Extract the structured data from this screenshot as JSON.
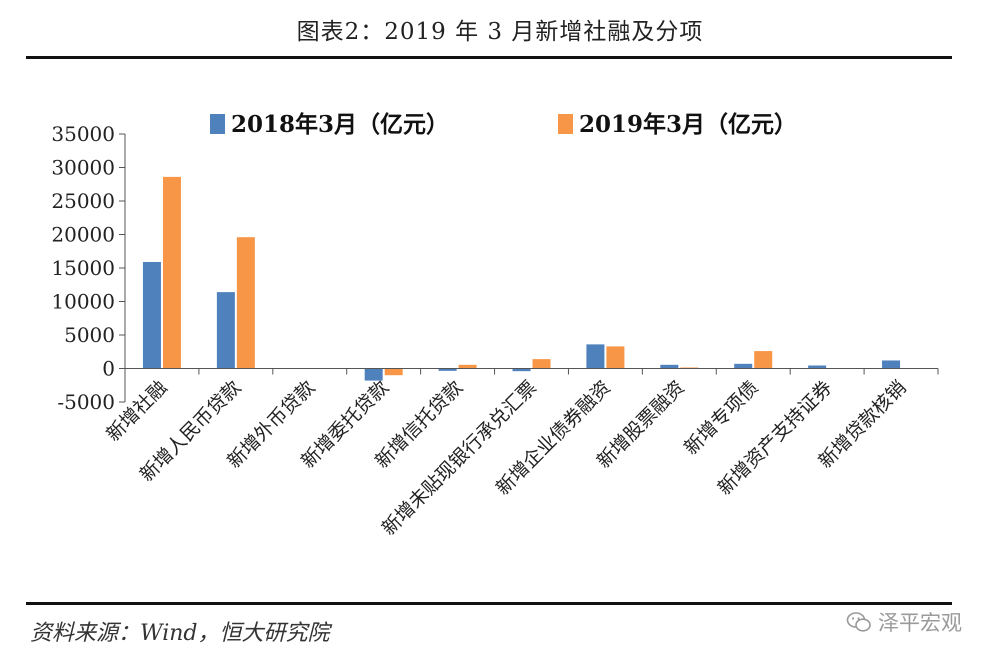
{
  "title": "图表2：2019 年 3 月新增社融及分项",
  "source": "资料来源：Wind，恒大研究院",
  "watermark": {
    "text": "泽平宏观",
    "icon": "wechat-icon"
  },
  "chart_data": {
    "type": "bar",
    "title": "图表2：2019 年 3 月新增社融及分项",
    "categories": [
      "新增社融",
      "新增人民币贷款",
      "新增外币贷款",
      "新增委托贷款",
      "新增信托贷款",
      "新增未贴现银行承兑汇票",
      "新增企业债券融资",
      "新增股票融资",
      "新增专项债",
      "新增资产支持证券",
      "新增贷款核销"
    ],
    "series": [
      {
        "name": "2018年3月（亿元）",
        "color": "#4f81bd",
        "values": [
          15900,
          11400,
          0,
          -1800,
          -350,
          -400,
          3600,
          550,
          700,
          450,
          1200
        ]
      },
      {
        "name": "2019年3月（亿元）",
        "color": "#f79646",
        "values": [
          28600,
          19600,
          0,
          -1000,
          550,
          1400,
          3300,
          150,
          2600,
          0,
          0
        ]
      }
    ],
    "ylim": [
      -5000,
      35000
    ],
    "yticks": [
      35000,
      30000,
      25000,
      20000,
      15000,
      10000,
      5000,
      0,
      -5000
    ],
    "legend_position": "top",
    "grid": false
  }
}
